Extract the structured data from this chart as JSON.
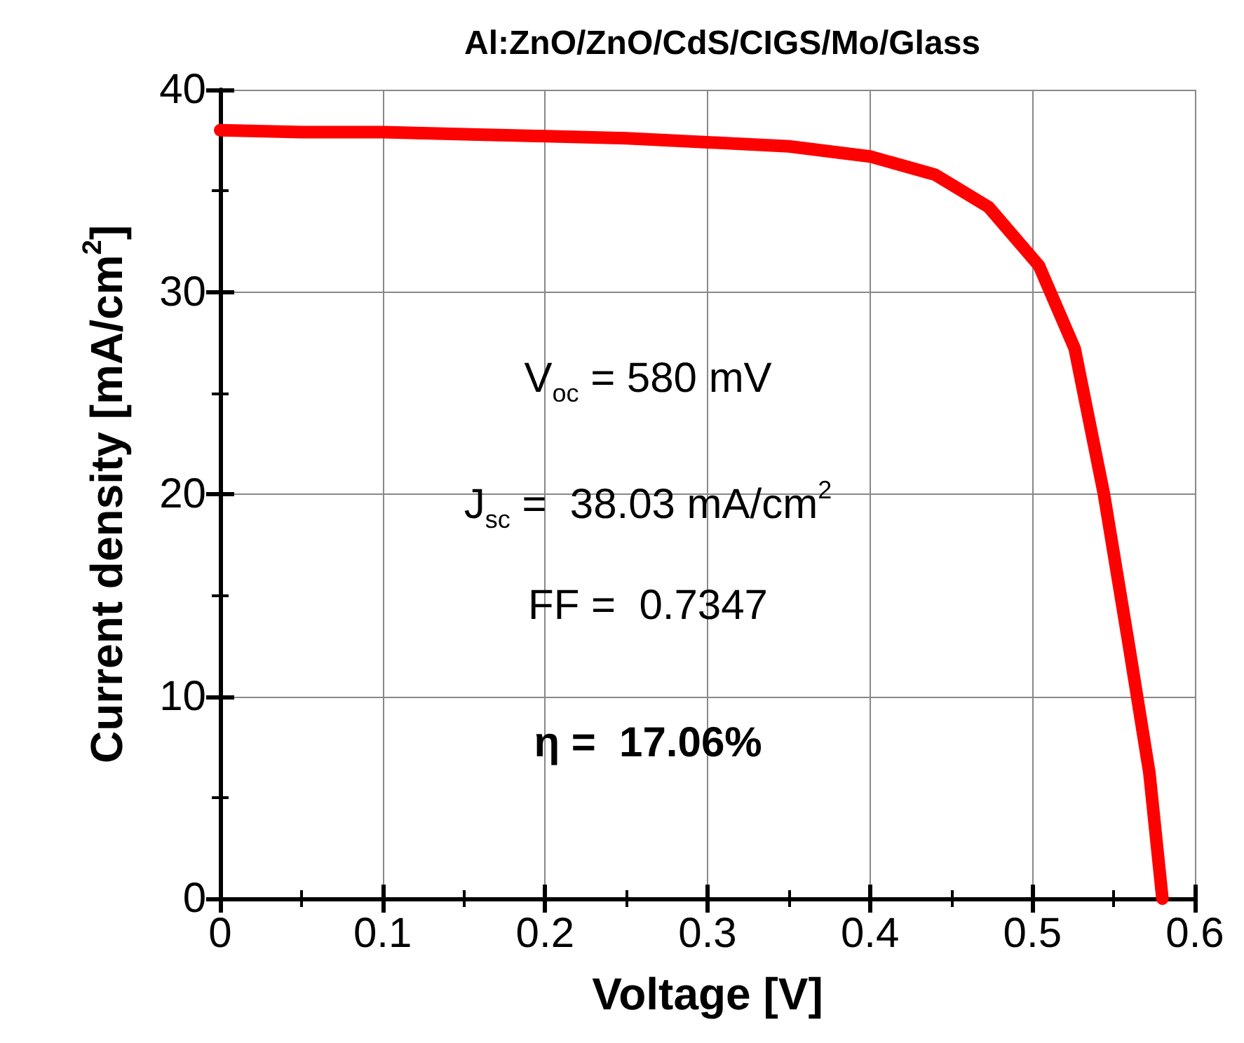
{
  "chart_data": {
    "type": "line",
    "title": "Al:ZnO/ZnO/CdS/CIGS/Mo/Glass",
    "xlabel": "Voltage [V]",
    "ylabel": "Current density [mA/cm$^{2}$]",
    "series": [
      {
        "color": "#ff0000",
        "x": [
          0,
          0.05,
          0.1,
          0.15,
          0.2,
          0.25,
          0.3,
          0.35,
          0.4,
          0.44,
          0.473,
          0.504,
          0.526,
          0.544,
          0.559,
          0.572,
          0.58
        ],
        "values": [
          38.0,
          37.9,
          37.9,
          37.8,
          37.7,
          37.6,
          37.4,
          37.2,
          36.7,
          35.8,
          34.2,
          31.3,
          27.2,
          20.0,
          12.7,
          6.2,
          0
        ]
      }
    ],
    "xlim": [
      0,
      0.6
    ],
    "xticks": [
      0,
      0.1,
      0.2,
      0.3,
      0.4,
      0.5,
      0.6
    ],
    "ylim": [
      0,
      40
    ],
    "yticks": [
      0,
      10,
      20,
      30,
      40
    ],
    "grid": true,
    "line_style": "solid",
    "annotations": [
      "V$_{oc}$ = 580 mV",
      "J$_{sc}$ =  38.03 mA/cm$^{2}$",
      "FF =  0.7347",
      "η =  17.06%"
    ]
  }
}
